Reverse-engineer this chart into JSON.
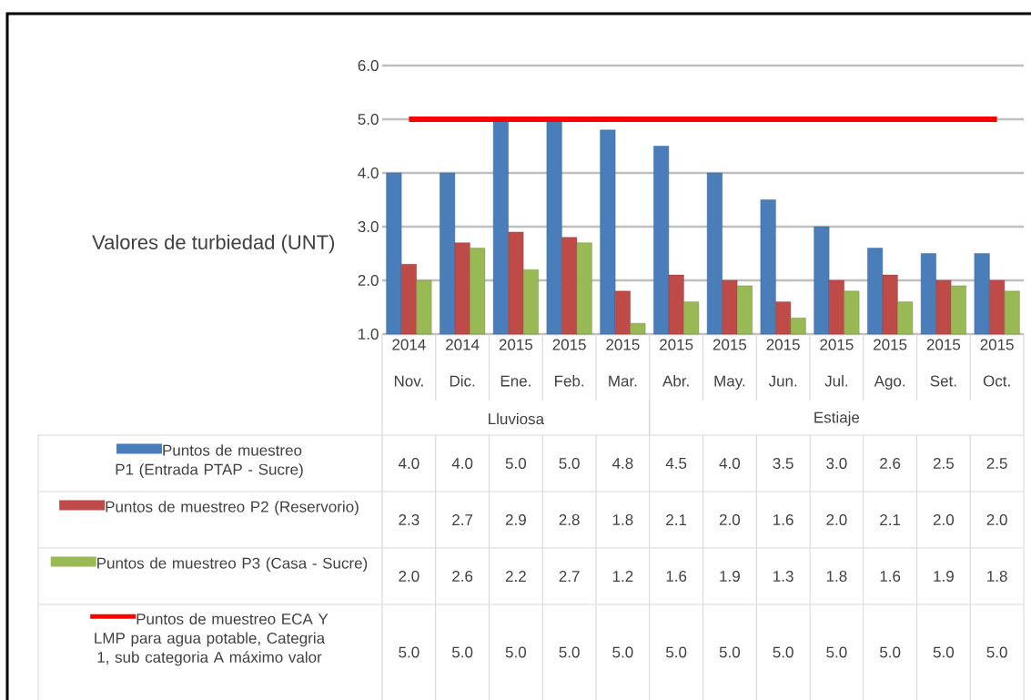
{
  "chart_data": {
    "type": "bar",
    "ylabel": "Valores de turbiedad (UNT)",
    "categories": [
      "2014 Nov.",
      "2014 Dic.",
      "2015 Ene.",
      "2015 Feb.",
      "2015 Mar.",
      "2015 Abr.",
      "2015 May.",
      "2015 Jun.",
      "2015 Jul.",
      "2015 Ago.",
      "2015 Set.",
      "2015 Oct."
    ],
    "series": [
      {
        "name": "Puntos de muestreo P1 (Entrada PTAP - Sucre)",
        "color": "#4a7ebb",
        "values": [
          4.0,
          4.0,
          5.0,
          5.0,
          4.8,
          4.5,
          4.0,
          3.5,
          3.0,
          2.6,
          2.5,
          2.5
        ],
        "value_labels": [
          "4.0",
          "4.0",
          "5.0",
          "5.0",
          "4.8",
          "4.5",
          "4.0",
          "3.5",
          "3.0",
          "2.6",
          "2.5",
          "2.5"
        ]
      },
      {
        "name": "Puntos de muestreo P2 (Reservorio)",
        "color": "#be4b48",
        "values": [
          2.3,
          2.7,
          2.9,
          2.8,
          1.8,
          2.1,
          2.0,
          1.6,
          2.0,
          2.1,
          2.0,
          2.0
        ],
        "value_labels": [
          "2.3",
          "2.7",
          "2.9",
          "2.8",
          "1.8",
          "2.1",
          "2.0",
          "1.6",
          "2.0",
          "2.1",
          "2.0",
          "2.0"
        ]
      },
      {
        "name": "Puntos de muestreo P3 (Casa - Sucre)",
        "color": "#98b954",
        "values": [
          2.0,
          2.6,
          2.2,
          2.7,
          1.2,
          1.6,
          1.9,
          1.3,
          1.8,
          1.6,
          1.9,
          1.8
        ],
        "value_labels": [
          "2.0",
          "2.6",
          "2.2",
          "2.7",
          "1.2",
          "1.6",
          "1.9",
          "1.3",
          "1.8",
          "1.6",
          "1.9",
          "1.8"
        ]
      },
      {
        "name": "Puntos de muestreo ECA Y LMP para agua potable, Categria 1, sub categoria A máximo valor",
        "type": "line",
        "color": "#ff0000",
        "values": [
          5.0,
          5.0,
          5.0,
          5.0,
          5.0,
          5.0,
          5.0,
          5.0,
          5.0,
          5.0,
          5.0,
          5.0
        ],
        "value_labels": [
          "5.0",
          "5.0",
          "5.0",
          "5.0",
          "5.0",
          "5.0",
          "5.0",
          "5.0",
          "5.0",
          "5.0",
          "5.0",
          "5.0"
        ]
      }
    ],
    "ylim": [
      1,
      6
    ],
    "yticks": [
      {
        "value": 1,
        "label": "1.0"
      },
      {
        "value": 2,
        "label": "2.0"
      },
      {
        "value": 3,
        "label": "3.0"
      },
      {
        "value": 4,
        "label": "4.0"
      },
      {
        "value": 5,
        "label": "5.0"
      },
      {
        "value": 6,
        "label": "6.0"
      }
    ],
    "grid": "y",
    "legend": "bottom",
    "annotations": [
      "Lluviosa",
      "Estiaje"
    ]
  }
}
